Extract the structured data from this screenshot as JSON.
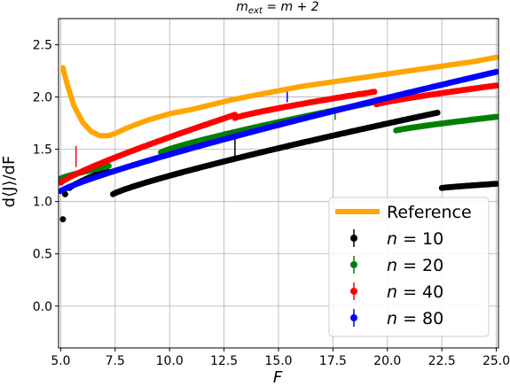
{
  "chart_data": {
    "type": "scatter",
    "title": "m_ext = m + 2",
    "title_parts": {
      "m": "m",
      "ext": "ext",
      "rest": " = m + 2"
    },
    "xlabel": "F",
    "ylabel": "d⟨J⟩/dF",
    "xlim": [
      4.9,
      25.1
    ],
    "ylim": [
      -0.4,
      2.75
    ],
    "grid": true,
    "legend_position": "lower-right",
    "x_ticks": [
      5.0,
      7.5,
      10.0,
      12.5,
      15.0,
      17.5,
      20.0,
      22.5,
      25.0
    ],
    "x_tick_labels": [
      "5.0",
      "7.5",
      "10.0",
      "12.5",
      "15.0",
      "17.5",
      "20.0",
      "22.5",
      "25.0"
    ],
    "y_ticks": [
      0.0,
      0.5,
      1.0,
      1.5,
      2.0,
      2.5
    ],
    "y_tick_labels": [
      "0.0",
      "0.5",
      "1.0",
      "1.5",
      "2.0",
      "2.5"
    ],
    "series": [
      {
        "name": "Reference",
        "kind": "line",
        "color": "#ffa500",
        "x": [
          5.1,
          5.3,
          5.6,
          6.0,
          6.4,
          6.8,
          7.2,
          7.6,
          8.0,
          9.0,
          10.0,
          11.0,
          12.0,
          13.0,
          14.0,
          15.0,
          16.0,
          17.0,
          18.0,
          19.0,
          20.0,
          21.0,
          22.0,
          23.0,
          24.0,
          25.0
        ],
        "y": [
          2.28,
          2.12,
          1.92,
          1.76,
          1.67,
          1.63,
          1.63,
          1.66,
          1.7,
          1.78,
          1.84,
          1.88,
          1.93,
          1.98,
          2.02,
          2.06,
          2.1,
          2.13,
          2.16,
          2.19,
          2.22,
          2.25,
          2.28,
          2.31,
          2.34,
          2.38
        ]
      },
      {
        "name": "n = 10",
        "label_var": "n",
        "label_value": "= 10",
        "kind": "points",
        "color": "#000000",
        "segments": [
          {
            "x0": 5.1,
            "x1": 5.1,
            "y0": 0.83,
            "y1": 0.83
          },
          {
            "x0": 5.2,
            "x1": 5.2,
            "y0": 1.07,
            "y1": 1.07
          },
          {
            "x0": 5.4,
            "x1": 7.1,
            "y0": 1.13,
            "y1": 1.3
          },
          {
            "x0": 7.4,
            "x1": 22.3,
            "y0": 1.07,
            "y1": 1.85
          },
          {
            "x0": 22.5,
            "x1": 25.0,
            "y0": 1.13,
            "y1": 1.17
          }
        ],
        "error_bars": [
          {
            "x": 13.0,
            "y": 1.5,
            "err": 0.1
          }
        ]
      },
      {
        "name": "n = 20",
        "label_var": "n",
        "label_value": "= 20",
        "kind": "points",
        "color": "#008000",
        "segments": [
          {
            "x0": 5.0,
            "x1": 7.2,
            "y0": 1.22,
            "y1": 1.34
          },
          {
            "x0": 9.6,
            "x1": 20.1,
            "y0": 1.47,
            "y1": 1.98
          },
          {
            "x0": 20.4,
            "x1": 25.0,
            "y0": 1.68,
            "y1": 1.81
          }
        ],
        "error_bars": [
          {
            "x": 17.6,
            "y": 1.83,
            "err": 0.05
          }
        ]
      },
      {
        "name": "n = 40",
        "label_var": "n",
        "label_value": "= 40",
        "kind": "points",
        "color": "#ff0000",
        "segments": [
          {
            "x0": 5.0,
            "x1": 13.0,
            "y0": 1.18,
            "y1": 1.83
          },
          {
            "x0": 13.0,
            "x1": 19.4,
            "y0": 1.8,
            "y1": 2.05
          },
          {
            "x0": 19.5,
            "x1": 25.0,
            "y0": 1.93,
            "y1": 2.11
          }
        ],
        "error_bars": [
          {
            "x": 5.7,
            "y": 1.43,
            "err": 0.1
          }
        ]
      },
      {
        "name": "n = 80",
        "label_var": "n",
        "label_value": "= 80",
        "kind": "points",
        "color": "#0000ff",
        "segments": [
          {
            "x0": 5.0,
            "x1": 25.0,
            "y0": 1.1,
            "y1": 2.24
          }
        ],
        "error_bars": [
          {
            "x": 15.4,
            "y": 2.0,
            "err": 0.05
          }
        ]
      }
    ]
  }
}
